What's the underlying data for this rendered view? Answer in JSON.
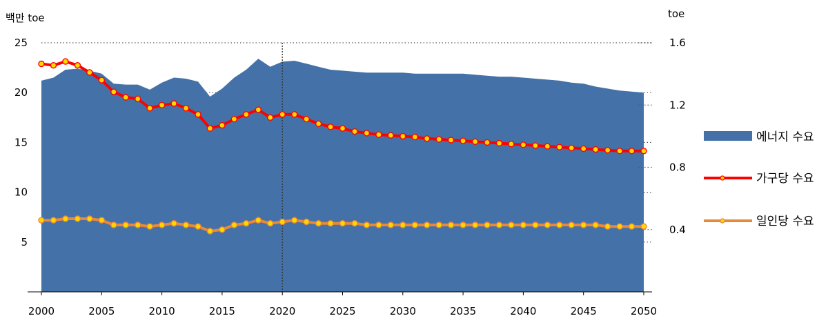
{
  "chart_data": {
    "type": "area",
    "left_unit": "백만 toe",
    "right_unit": "toe",
    "x_ticks": [
      2000,
      2005,
      2010,
      2015,
      2020,
      2025,
      2030,
      2035,
      2040,
      2045,
      2050
    ],
    "x_range": [
      2000,
      2050
    ],
    "y_left_ticks": [
      "5",
      "10",
      "15",
      "20",
      "25"
    ],
    "y_left_range": [
      0,
      25
    ],
    "y_right_ticks": [
      "0.4",
      "0.8",
      "1.2",
      "1.6"
    ],
    "y_right_range": [
      0,
      1.6
    ],
    "grid": "dotted horizontal",
    "divider_year": 2020,
    "legend_position": "right",
    "x": [
      2000,
      2001,
      2002,
      2003,
      2004,
      2005,
      2006,
      2007,
      2008,
      2009,
      2010,
      2011,
      2012,
      2013,
      2014,
      2015,
      2016,
      2017,
      2018,
      2019,
      2020,
      2021,
      2022,
      2023,
      2024,
      2025,
      2026,
      2027,
      2028,
      2029,
      2030,
      2031,
      2032,
      2033,
      2034,
      2035,
      2036,
      2037,
      2038,
      2039,
      2040,
      2041,
      2042,
      2043,
      2044,
      2045,
      2046,
      2047,
      2048,
      2049,
      2050
    ],
    "series": [
      {
        "name": "에너지 수요",
        "kind": "area",
        "axis": "left",
        "color": "#4472a8",
        "values": [
          21.2,
          21.5,
          22.3,
          22.4,
          22.2,
          21.9,
          20.9,
          20.8,
          20.8,
          20.3,
          21.0,
          21.5,
          21.4,
          21.1,
          19.6,
          20.4,
          21.5,
          22.3,
          23.4,
          22.6,
          23.1,
          23.2,
          22.9,
          22.6,
          22.3,
          22.2,
          22.1,
          22.0,
          22.0,
          22.0,
          22.0,
          21.9,
          21.9,
          21.9,
          21.9,
          21.9,
          21.8,
          21.7,
          21.6,
          21.6,
          21.5,
          21.4,
          21.3,
          21.2,
          21.0,
          20.9,
          20.6,
          20.4,
          20.2,
          20.1,
          20.0
        ]
      },
      {
        "name": "가구당 수요",
        "kind": "line",
        "axis": "right",
        "color": "#ff0000",
        "marker": "#ffd700",
        "values": [
          1.465,
          1.455,
          1.48,
          1.455,
          1.41,
          1.36,
          1.285,
          1.25,
          1.24,
          1.18,
          1.2,
          1.21,
          1.18,
          1.14,
          1.05,
          1.07,
          1.11,
          1.14,
          1.17,
          1.12,
          1.14,
          1.14,
          1.11,
          1.08,
          1.06,
          1.05,
          1.03,
          1.02,
          1.01,
          1.005,
          1.0,
          0.995,
          0.985,
          0.98,
          0.975,
          0.97,
          0.965,
          0.96,
          0.955,
          0.95,
          0.945,
          0.94,
          0.935,
          0.93,
          0.925,
          0.92,
          0.915,
          0.91,
          0.905,
          0.905,
          0.905
        ]
      },
      {
        "name": "일인당 수요",
        "kind": "line",
        "axis": "right",
        "color": "#e8883a",
        "marker": "#ffd700",
        "values": [
          0.46,
          0.46,
          0.47,
          0.47,
          0.47,
          0.46,
          0.43,
          0.43,
          0.43,
          0.42,
          0.43,
          0.44,
          0.43,
          0.42,
          0.39,
          0.4,
          0.43,
          0.44,
          0.46,
          0.44,
          0.45,
          0.46,
          0.45,
          0.44,
          0.44,
          0.44,
          0.44,
          0.43,
          0.43,
          0.43,
          0.43,
          0.43,
          0.43,
          0.43,
          0.43,
          0.43,
          0.43,
          0.43,
          0.43,
          0.43,
          0.43,
          0.43,
          0.43,
          0.43,
          0.43,
          0.43,
          0.43,
          0.42,
          0.42,
          0.42,
          0.42
        ]
      }
    ]
  }
}
